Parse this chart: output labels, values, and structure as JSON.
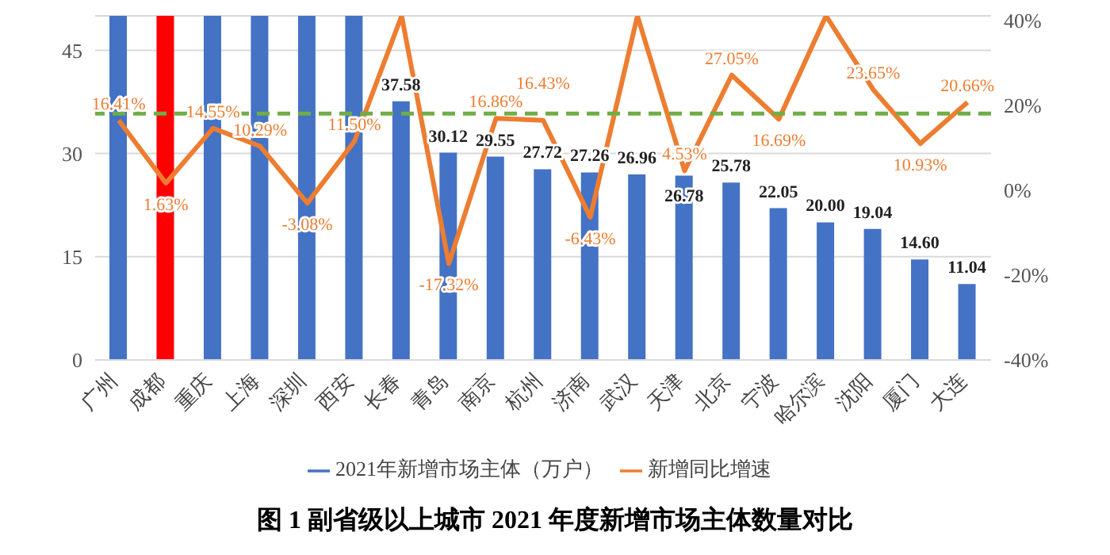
{
  "chart_data": {
    "type": "bar",
    "title": "图 1  副省级以上城市 2021 年度新增市场主体数量对比",
    "categories": [
      "广州",
      "成都",
      "重庆",
      "上海",
      "深圳",
      "西安",
      "长春",
      "青岛",
      "南京",
      "杭州",
      "济南",
      "武汉",
      "天津",
      "北京",
      "宁波",
      "哈尔滨",
      "沈阳",
      "厦门",
      "大连"
    ],
    "series": [
      {
        "name": "2021年新增市场主体（万户）",
        "color": "#4472c4",
        "colors": [
          "#4472c4",
          "#ff0000",
          "#4472c4",
          "#4472c4",
          "#4472c4",
          "#4472c4",
          "#4472c4",
          "#4472c4",
          "#4472c4",
          "#4472c4",
          "#4472c4",
          "#4472c4",
          "#4472c4",
          "#4472c4",
          "#4472c4",
          "#4472c4",
          "#4472c4",
          "#4472c4",
          "#4472c4"
        ],
        "values": [
          50,
          50,
          50,
          50,
          50,
          50,
          37.58,
          30.12,
          29.55,
          27.72,
          27.26,
          26.96,
          26.78,
          25.78,
          22.05,
          20.0,
          19.04,
          14.6,
          11.04
        ],
        "value_labels": [
          null,
          null,
          null,
          null,
          null,
          null,
          "37.58",
          "30.12",
          "29.55",
          "27.72",
          "27.26",
          "26.96",
          "26.78",
          "25.78",
          "22.05",
          "20.00",
          "19.04",
          "14.60",
          "11.04"
        ]
      },
      {
        "name": "新增同比增速",
        "type": "line",
        "axis": "y2",
        "color": "#ed7d31",
        "values": [
          16.41,
          1.63,
          14.55,
          10.29,
          -3.08,
          11.5,
          41,
          -17.32,
          16.86,
          16.43,
          -6.43,
          41,
          4.53,
          27.05,
          16.69,
          41,
          23.65,
          10.93,
          20.66
        ],
        "value_labels": [
          "16.41%",
          "1.63%",
          "14.55%",
          "10.29%",
          "-3.08%",
          "11.50%",
          null,
          "-17.32%",
          "16.86%",
          "16.43%",
          "-6.43%",
          null,
          "4.53%",
          "27.05%",
          "16.69%",
          null,
          "23.65%",
          "10.93%",
          "20.66%"
        ]
      }
    ],
    "ylim": [
      0,
      50
    ],
    "yticks": [
      0,
      15,
      30,
      45
    ],
    "y2lim": [
      -40,
      41
    ],
    "y2ticks": [
      {
        "value": -40,
        "label": "-40%"
      },
      {
        "value": -20,
        "label": "-20%"
      },
      {
        "value": 0,
        "label": "0%"
      },
      {
        "value": 20,
        "label": "20%"
      },
      {
        "value": 40,
        "label": "40%"
      }
    ],
    "ref_lines": [
      {
        "axis": "y2",
        "value": 18,
        "color": "#70ad47",
        "line_style": "dashed"
      }
    ],
    "grid": "y",
    "legend": "bottom",
    "marker": "none",
    "line_style": "solid"
  }
}
